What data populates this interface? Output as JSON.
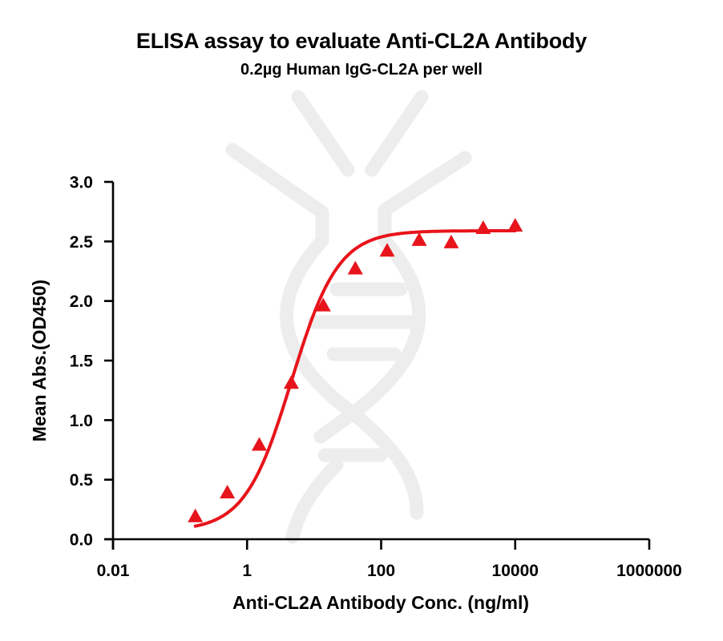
{
  "chart_data": {
    "type": "scatter",
    "title": "ELISA assay to evaluate Anti-CL2A Antibody",
    "subtitle": "0.2µg Human IgG-CL2A per well",
    "xlabel": "Anti-CL2A Antibody Conc. (ng/ml)",
    "ylabel": "Mean Abs.(OD450)",
    "xscale": "log",
    "xlim": [
      0.01,
      1000000
    ],
    "ylim": [
      0.0,
      3.0
    ],
    "xticks": [
      "0.01",
      "1",
      "100",
      "10000",
      "1000000"
    ],
    "xtick_values": [
      0.01,
      1,
      100,
      10000,
      1000000
    ],
    "yticks": [
      "0.0",
      "0.5",
      "1.0",
      "1.5",
      "2.0",
      "2.5",
      "3.0"
    ],
    "ytick_values": [
      0.0,
      0.5,
      1.0,
      1.5,
      2.0,
      2.5,
      3.0
    ],
    "grid": false,
    "legend": null,
    "series": [
      {
        "name": "Anti-CL2A Antibody",
        "marker": "triangle",
        "color": "#e8141b",
        "fit": "4PL sigmoidal curve",
        "x": [
          0.169,
          0.508,
          1.52,
          4.57,
          13.7,
          41.2,
          123,
          370,
          1111,
          3333,
          10000
        ],
        "y": [
          0.19,
          0.39,
          0.79,
          1.31,
          1.96,
          2.27,
          2.42,
          2.51,
          2.49,
          2.61,
          2.63
        ]
      }
    ],
    "fit_params": {
      "bottom": 0.07,
      "top": 2.59,
      "ec50": 4.6,
      "hill": 1.25
    }
  },
  "watermark": {
    "icon": "antibody-dna-watermark-icon",
    "color": "#ececec"
  }
}
